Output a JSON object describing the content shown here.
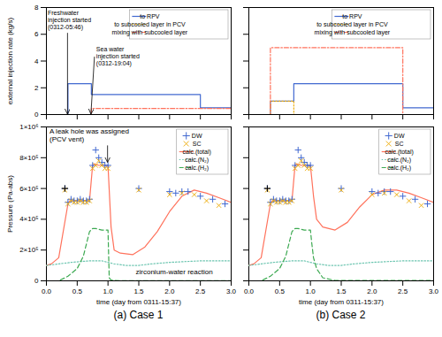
{
  "chart_data": [
    {
      "type": "line",
      "ylabel": "external injection rate (kg/s)",
      "xlim": [
        0,
        3
      ],
      "ylim": [
        0,
        8
      ],
      "xticks": [
        0,
        0.5,
        1,
        1.5,
        2,
        2.5,
        3
      ],
      "yticks": [
        0,
        2,
        4,
        6,
        8
      ],
      "tick_labels": "y",
      "legend": "upper right",
      "series": [
        {
          "name": "to RPV",
          "line_style": "solid",
          "x": [
            0.0,
            0.35,
            0.35,
            0.73,
            0.73,
            2.5,
            2.5,
            3.0
          ],
          "values": [
            0.0,
            0.0,
            2.3,
            2.3,
            1.5,
            1.5,
            0.5,
            0.5
          ]
        },
        {
          "name": "to subcooled layer in PCV",
          "line_style": "dotted",
          "x": [
            0.0,
            3.0
          ],
          "values": [
            0.0,
            0.0
          ]
        },
        {
          "name": "mixing with subcooled layer",
          "line_style": "dashdot",
          "x": [
            0.0,
            0.73,
            0.73,
            2.5,
            2.5,
            3.0
          ],
          "values": [
            0.0,
            0.0,
            0.45,
            0.45,
            0.45,
            0.45
          ]
        }
      ],
      "annotations": [
        {
          "text": "Freshwater\ninjection started\n(0312-05:46)",
          "x": 0.35,
          "y": 0.0,
          "arrow": true
        },
        {
          "text": "Sea water\ninjection started\n(0312-19:04)",
          "x": 0.73,
          "y": 0.0,
          "arrow": true
        }
      ]
    },
    {
      "type": "line",
      "xlim": [
        0,
        3
      ],
      "ylim": [
        0,
        8
      ],
      "xticks": [
        0,
        0.5,
        1,
        1.5,
        2,
        2.5,
        3
      ],
      "yticks": [
        0,
        2,
        4,
        6,
        8
      ],
      "tick_labels": false,
      "legend": "upper right",
      "series": [
        {
          "name": "to RPV",
          "line_style": "solid",
          "x": [
            0.0,
            0.35,
            0.35,
            0.73,
            0.73,
            2.5,
            2.5,
            3.0
          ],
          "values": [
            0.0,
            0.0,
            1.0,
            1.0,
            2.3,
            2.3,
            0.5,
            0.5
          ]
        },
        {
          "name": "to subcooled layer in PCV",
          "line_style": "dotted",
          "x": [
            0.0,
            0.35,
            0.35,
            0.73,
            0.73,
            3.0
          ],
          "values": [
            0.0,
            0.0,
            1.0,
            1.0,
            0.0,
            0.0
          ]
        },
        {
          "name": "mixing with subcooled layer",
          "line_style": "dashdot",
          "x": [
            0.0,
            0.35,
            0.35,
            2.5,
            2.5,
            3.0
          ],
          "values": [
            0.0,
            0.0,
            5.0,
            5.0,
            0.0,
            0.0
          ]
        }
      ]
    },
    {
      "type": "line",
      "title": "(a) Case 1",
      "xlabel": "time (day from 0311-15:37)",
      "ylabel": "Pressure (Pa-abs)",
      "xlim": [
        0,
        3
      ],
      "ylim": [
        0,
        1000000
      ],
      "xticks": [
        {
          "value": 0,
          "label": "0.0"
        },
        0.5,
        {
          "value": 1,
          "label": "1.0"
        },
        1.5,
        {
          "value": 2,
          "label": "2.0"
        },
        2.5,
        {
          "value": 3,
          "label": "3.0"
        }
      ],
      "yticks": [
        0,
        {
          "value": 200000,
          "label": "2×10⁵"
        },
        {
          "value": 400000,
          "label": "4×10⁵"
        },
        {
          "value": 600000,
          "label": "6×10⁵"
        },
        {
          "value": 800000,
          "label": "8×10⁵"
        },
        {
          "value": 1000000,
          "label": "1×10⁶"
        }
      ],
      "legend": "upper right",
      "series": [
        {
          "name": "DW",
          "type": "scatter",
          "marker": "plus",
          "x": [
            0.3,
            0.35,
            0.4,
            0.45,
            0.5,
            0.55,
            0.6,
            0.65,
            0.7,
            0.75,
            0.8,
            0.85,
            0.9,
            0.95,
            1.0,
            1.5,
            2.0,
            2.1,
            2.2,
            2.3,
            2.5,
            2.7,
            2.9
          ],
          "values": [
            600000,
            510000,
            530000,
            520000,
            520000,
            530000,
            520000,
            520000,
            530000,
            750000,
            850000,
            800000,
            770000,
            750000,
            750000,
            600000,
            580000,
            570000,
            580000,
            580000,
            550000,
            530000,
            500000
          ]
        },
        {
          "name": "SC",
          "type": "scatter",
          "marker": "times",
          "x": [
            0.3,
            0.35,
            0.4,
            0.45,
            0.5,
            0.55,
            0.6,
            0.65,
            0.7,
            0.75,
            0.8,
            0.85,
            0.9,
            0.95,
            1.0,
            1.5,
            2.0,
            2.2,
            2.4,
            2.6,
            2.8
          ],
          "values": [
            590000,
            500000,
            520000,
            510000,
            510000,
            520000,
            510000,
            510000,
            520000,
            730000,
            750000,
            780000,
            750000,
            730000,
            730000,
            590000,
            560000,
            570000,
            560000,
            520000,
            490000
          ]
        },
        {
          "type": "scatter",
          "marker": "plus",
          "x": [
            0.3
          ],
          "values": [
            600000
          ]
        },
        {
          "name": "calc.(total)",
          "line_style": "solid",
          "x": [
            0.0,
            0.08,
            0.2,
            0.35,
            0.38,
            0.42,
            0.5,
            0.6,
            0.7,
            0.75,
            0.78,
            0.85,
            0.92,
            1.0,
            1.05,
            1.1,
            1.2,
            1.4,
            1.6,
            1.8,
            2.0,
            2.2,
            2.4,
            2.6,
            2.8,
            3.0
          ],
          "values": [
            100000,
            110000,
            150000,
            500000,
            520000,
            520000,
            520000,
            520000,
            520000,
            750000,
            760000,
            750000,
            750000,
            750000,
            350000,
            200000,
            180000,
            170000,
            220000,
            320000,
            450000,
            550000,
            590000,
            570000,
            540000,
            510000
          ]
        },
        {
          "name": "calc.(N₂)",
          "line_style": "dotted",
          "x": [
            0.0,
            0.2,
            0.4,
            0.7,
            0.9,
            1.0,
            1.1,
            1.3,
            1.5,
            1.7,
            2.0,
            2.5,
            3.0
          ],
          "values": [
            100000,
            110000,
            120000,
            130000,
            130000,
            120000,
            110000,
            100000,
            100000,
            110000,
            120000,
            130000,
            130000
          ]
        },
        {
          "name": "calc.(H₂)",
          "line_style": "dashed",
          "x": [
            0.0,
            0.2,
            0.35,
            0.5,
            0.6,
            0.7,
            0.75,
            0.8,
            0.9,
            1.0,
            1.02,
            1.05,
            1.1,
            1.2,
            1.4,
            2.0,
            2.5,
            3.0
          ],
          "values": [
            0,
            0,
            30000,
            80000,
            160000,
            320000,
            340000,
            340000,
            330000,
            330000,
            20000,
            5000,
            2000,
            1000,
            1000,
            1000,
            1000,
            1000
          ]
        }
      ],
      "annotations": [
        {
          "text": "A leak hole was assigned\n(PCV vent)",
          "x": 1.0,
          "y": 750000,
          "arrow": true
        },
        {
          "text": "zirconium-water reaction",
          "x": 1.45,
          "y": 60000,
          "arrow": false
        }
      ]
    },
    {
      "type": "line",
      "title": "(b) Case 2",
      "xlabel": "time (day from 0311-15:37)",
      "xlim": [
        0,
        3
      ],
      "ylim": [
        0,
        1000000
      ],
      "xticks": [
        {
          "value": 0,
          "label": "0.0"
        },
        0.5,
        {
          "value": 1,
          "label": "1.0"
        },
        1.5,
        {
          "value": 2,
          "label": "2.0"
        },
        2.5,
        {
          "value": 3,
          "label": "3.0"
        }
      ],
      "yticks": [
        0,
        200000,
        400000,
        600000,
        800000,
        1000000
      ],
      "tick_labels": "x",
      "legend": "upper right",
      "series": [
        {
          "name": "DW",
          "type": "scatter",
          "marker": "plus",
          "x": [
            0.3,
            0.35,
            0.4,
            0.45,
            0.5,
            0.55,
            0.6,
            0.65,
            0.7,
            0.75,
            0.8,
            0.85,
            0.9,
            0.95,
            1.0,
            1.5,
            2.0,
            2.1,
            2.2,
            2.3,
            2.5,
            2.7,
            2.9
          ],
          "values": [
            600000,
            510000,
            530000,
            520000,
            520000,
            530000,
            520000,
            520000,
            530000,
            750000,
            850000,
            800000,
            770000,
            750000,
            750000,
            600000,
            580000,
            570000,
            580000,
            580000,
            550000,
            530000,
            500000
          ]
        },
        {
          "name": "SC",
          "type": "scatter",
          "marker": "times",
          "x": [
            0.3,
            0.35,
            0.4,
            0.45,
            0.5,
            0.55,
            0.6,
            0.65,
            0.7,
            0.75,
            0.8,
            0.85,
            0.9,
            0.95,
            1.0,
            1.5,
            2.0,
            2.2,
            2.4,
            2.6,
            2.8
          ],
          "values": [
            590000,
            500000,
            520000,
            510000,
            510000,
            520000,
            510000,
            510000,
            520000,
            730000,
            750000,
            780000,
            750000,
            730000,
            730000,
            590000,
            560000,
            570000,
            560000,
            520000,
            490000
          ]
        },
        {
          "type": "scatter",
          "marker": "plus",
          "x": [
            0.3
          ],
          "values": [
            600000
          ]
        },
        {
          "name": "calc.(total)",
          "line_style": "solid",
          "x": [
            0.0,
            0.08,
            0.2,
            0.35,
            0.38,
            0.42,
            0.5,
            0.6,
            0.7,
            0.75,
            0.78,
            0.85,
            0.92,
            1.0,
            1.05,
            1.1,
            1.2,
            1.4,
            1.6,
            1.8,
            2.0,
            2.2,
            2.4,
            2.6,
            2.8,
            3.0
          ],
          "values": [
            100000,
            110000,
            150000,
            500000,
            520000,
            520000,
            520000,
            520000,
            520000,
            750000,
            760000,
            750000,
            750000,
            750000,
            550000,
            400000,
            350000,
            330000,
            380000,
            480000,
            560000,
            590000,
            590000,
            570000,
            540000,
            510000
          ]
        },
        {
          "name": "calc.(N₂)",
          "line_style": "dotted",
          "x": [
            0.0,
            0.2,
            0.4,
            0.7,
            0.9,
            1.0,
            1.1,
            1.3,
            1.5,
            1.7,
            2.0,
            2.5,
            3.0
          ],
          "values": [
            100000,
            110000,
            120000,
            130000,
            130000,
            120000,
            110000,
            100000,
            100000,
            110000,
            120000,
            130000,
            130000
          ]
        },
        {
          "name": "calc.(H₂)",
          "line_style": "dashed",
          "x": [
            0.0,
            0.2,
            0.35,
            0.5,
            0.6,
            0.7,
            0.75,
            0.8,
            0.9,
            1.0,
            1.02,
            1.05,
            1.1,
            1.2,
            1.4,
            2.0,
            2.5,
            3.0
          ],
          "values": [
            0,
            0,
            30000,
            80000,
            160000,
            320000,
            340000,
            340000,
            330000,
            330000,
            250000,
            150000,
            80000,
            20000,
            2000,
            2000,
            2000,
            2000
          ]
        }
      ]
    }
  ]
}
